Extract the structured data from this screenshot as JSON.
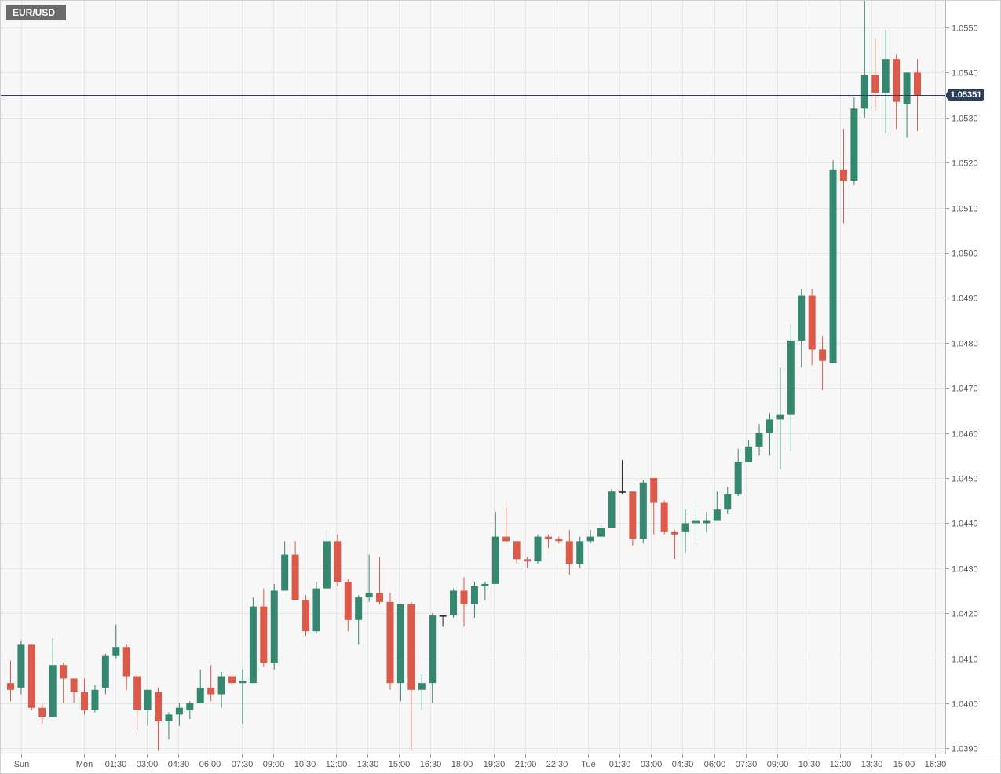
{
  "symbol": "EUR/USD",
  "current_price_label": "1.05351",
  "colors": {
    "up": "#36876f",
    "down": "#dc5a4a",
    "neutral": "#222222",
    "price_line": "#2b3f5c",
    "grid": "#e6e6e6",
    "plot_bg": "#f7f7f7"
  },
  "chart_data": {
    "type": "candlestick",
    "title": "",
    "xlabel": "",
    "ylabel": "",
    "ylim": [
      1.0389,
      1.0556
    ],
    "y_ticks": [
      "1.0550",
      "1.0540",
      "1.0530",
      "1.0520",
      "1.0510",
      "1.0500",
      "1.0490",
      "1.0480",
      "1.0470",
      "1.0460",
      "1.0450",
      "1.0440",
      "1.0430",
      "1.0420",
      "1.0410",
      "1.0400",
      "1.0390"
    ],
    "x_ticks": [
      "Sun",
      "Mon",
      "01:30",
      "03:00",
      "04:30",
      "06:00",
      "07:30",
      "09:00",
      "10:30",
      "12:00",
      "13:30",
      "15:00",
      "16:30",
      "18:00",
      "19:30",
      "21:00",
      "22:30",
      "Tue",
      "01:30",
      "03:00",
      "04:30",
      "06:00",
      "07:30",
      "09:00",
      "10:30",
      "12:00",
      "13:30",
      "15:00",
      "16:30"
    ],
    "current_price": 1.05351,
    "grid": true,
    "candles": [
      [
        1.04045,
        1.04095,
        1.04005,
        1.0403
      ],
      [
        1.04035,
        1.0414,
        1.0402,
        1.0413
      ],
      [
        1.0413,
        1.0413,
        1.03985,
        1.0399
      ],
      [
        1.0399,
        1.04,
        1.03955,
        1.0397
      ],
      [
        1.0397,
        1.04145,
        1.0397,
        1.04085
      ],
      [
        1.04085,
        1.0409,
        1.04,
        1.04055
      ],
      [
        1.04055,
        1.04055,
        1.04,
        1.04025
      ],
      [
        1.04025,
        1.04055,
        1.03975,
        1.03985
      ],
      [
        1.03985,
        1.0404,
        1.0398,
        1.0403
      ],
      [
        1.04035,
        1.0411,
        1.0402,
        1.04105
      ],
      [
        1.04105,
        1.04175,
        1.041,
        1.04125
      ],
      [
        1.04125,
        1.0413,
        1.0403,
        1.0406
      ],
      [
        1.0406,
        1.0406,
        1.0394,
        1.03985
      ],
      [
        1.03985,
        1.0403,
        1.0395,
        1.0403
      ],
      [
        1.04025,
        1.04035,
        1.03895,
        1.0396
      ],
      [
        1.0396,
        1.0398,
        1.0392,
        1.03975
      ],
      [
        1.03975,
        1.04,
        1.0395,
        1.0399
      ],
      [
        1.03985,
        1.04005,
        1.03965,
        1.04
      ],
      [
        1.04,
        1.04075,
        1.04,
        1.04035
      ],
      [
        1.04035,
        1.04085,
        1.04005,
        1.0402
      ],
      [
        1.0402,
        1.0407,
        1.0399,
        1.0406
      ],
      [
        1.0406,
        1.0407,
        1.04045,
        1.04045
      ],
      [
        1.04045,
        1.04075,
        1.03955,
        1.0405
      ],
      [
        1.04045,
        1.04235,
        1.04045,
        1.04215
      ],
      [
        1.04215,
        1.04255,
        1.0408,
        1.0409
      ],
      [
        1.0409,
        1.04265,
        1.04075,
        1.0425
      ],
      [
        1.0425,
        1.0436,
        1.0425,
        1.0433
      ],
      [
        1.0433,
        1.0436,
        1.04245,
        1.0423
      ],
      [
        1.0423,
        1.0424,
        1.0415,
        1.0416
      ],
      [
        1.0416,
        1.0427,
        1.04155,
        1.04255
      ],
      [
        1.04255,
        1.04385,
        1.04255,
        1.0436
      ],
      [
        1.0436,
        1.04375,
        1.0426,
        1.0427
      ],
      [
        1.0427,
        1.04275,
        1.0416,
        1.04185
      ],
      [
        1.04185,
        1.0424,
        1.0413,
        1.04235
      ],
      [
        1.04235,
        1.0433,
        1.04225,
        1.04245
      ],
      [
        1.04245,
        1.04325,
        1.0422,
        1.04225
      ],
      [
        1.04225,
        1.04245,
        1.0403,
        1.04045
      ],
      [
        1.04045,
        1.0422,
        1.04005,
        1.0422
      ],
      [
        1.0422,
        1.04225,
        1.03895,
        1.0403
      ],
      [
        1.0403,
        1.04065,
        1.03985,
        1.04045
      ],
      [
        1.04045,
        1.042,
        1.04,
        1.04195
      ],
      [
        1.04195,
        1.04195,
        1.0417,
        1.04195
      ],
      [
        1.04195,
        1.04255,
        1.0419,
        1.0425
      ],
      [
        1.0425,
        1.0428,
        1.0417,
        1.0422
      ],
      [
        1.0422,
        1.0427,
        1.0419,
        1.0426
      ],
      [
        1.0426,
        1.0427,
        1.0423,
        1.04265
      ],
      [
        1.04265,
        1.04425,
        1.04265,
        1.0437
      ],
      [
        1.0437,
        1.04435,
        1.04355,
        1.0436
      ],
      [
        1.0436,
        1.0436,
        1.0431,
        1.0432
      ],
      [
        1.0432,
        1.04325,
        1.043,
        1.04315
      ],
      [
        1.04315,
        1.04375,
        1.0431,
        1.0437
      ],
      [
        1.0437,
        1.04375,
        1.04345,
        1.04365
      ],
      [
        1.04365,
        1.0437,
        1.04355,
        1.0436
      ],
      [
        1.0436,
        1.04385,
        1.04285,
        1.0431
      ],
      [
        1.0431,
        1.0437,
        1.043,
        1.0436
      ],
      [
        1.0436,
        1.04385,
        1.04355,
        1.0437
      ],
      [
        1.0437,
        1.04395,
        1.0437,
        1.0439
      ],
      [
        1.0439,
        1.04475,
        1.0439,
        1.0447
      ],
      [
        1.0447,
        1.0454,
        1.04465,
        1.0447
      ],
      [
        1.0447,
        1.0447,
        1.0435,
        1.04365
      ],
      [
        1.04365,
        1.04495,
        1.04355,
        1.0449
      ],
      [
        1.045,
        1.045,
        1.04375,
        1.04445
      ],
      [
        1.04445,
        1.0445,
        1.04375,
        1.0438
      ],
      [
        1.0438,
        1.04385,
        1.0432,
        1.04375
      ],
      [
        1.0438,
        1.0443,
        1.04335,
        1.044
      ],
      [
        1.044,
        1.0444,
        1.0436,
        1.04405
      ],
      [
        1.044,
        1.04425,
        1.0438,
        1.04405
      ],
      [
        1.04405,
        1.0447,
        1.04405,
        1.0443
      ],
      [
        1.0443,
        1.0448,
        1.0442,
        1.04465
      ],
      [
        1.04465,
        1.04565,
        1.0446,
        1.04535
      ],
      [
        1.04535,
        1.04585,
        1.0455,
        1.0457
      ],
      [
        1.0457,
        1.0462,
        1.0455,
        1.046
      ],
      [
        1.046,
        1.04645,
        1.0455,
        1.0463
      ],
      [
        1.0463,
        1.04745,
        1.0452,
        1.0464
      ],
      [
        1.0464,
        1.0484,
        1.0456,
        1.04805
      ],
      [
        1.04805,
        1.0492,
        1.04745,
        1.04905
      ],
      [
        1.04905,
        1.0492,
        1.0475,
        1.04785
      ],
      [
        1.04785,
        1.04815,
        1.04695,
        1.0476
      ],
      [
        1.04755,
        1.05205,
        1.04755,
        1.05185
      ],
      [
        1.05185,
        1.05275,
        1.05065,
        1.0516
      ],
      [
        1.0516,
        1.05345,
        1.0515,
        1.0532
      ],
      [
        1.0532,
        1.0556,
        1.053,
        1.05395
      ],
      [
        1.05395,
        1.05475,
        1.05315,
        1.05355
      ],
      [
        1.05355,
        1.05495,
        1.05265,
        1.0543
      ],
      [
        1.0543,
        1.0544,
        1.05275,
        1.05335
      ],
      [
        1.0533,
        1.054,
        1.05255,
        1.054
      ],
      [
        1.054,
        1.0543,
        1.0527,
        1.0535
      ]
    ]
  }
}
